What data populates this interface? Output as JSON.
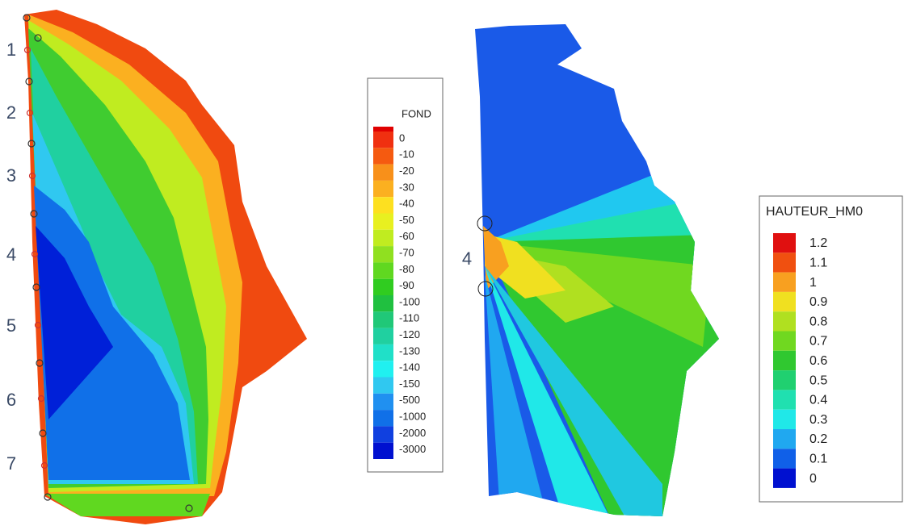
{
  "left_map": {
    "labels": [
      "1",
      "2",
      "3",
      "4",
      "5",
      "6",
      "7"
    ]
  },
  "fond_legend": {
    "title": "FOND",
    "items": [
      {
        "label": "0",
        "color": "#f03010"
      },
      {
        "label": "-10",
        "color": "#f55a10"
      },
      {
        "label": "-20",
        "color": "#f8901a"
      },
      {
        "label": "-30",
        "color": "#fbb020"
      },
      {
        "label": "-40",
        "color": "#fde020"
      },
      {
        "label": "-50",
        "color": "#e8f020"
      },
      {
        "label": "-60",
        "color": "#c0ec20"
      },
      {
        "label": "-70",
        "color": "#90e020"
      },
      {
        "label": "-80",
        "color": "#60d820"
      },
      {
        "label": "-90",
        "color": "#30cc20"
      },
      {
        "label": "-100",
        "color": "#20c040"
      },
      {
        "label": "-110",
        "color": "#20c878"
      },
      {
        "label": "-120",
        "color": "#20d0a0"
      },
      {
        "label": "-130",
        "color": "#20e0c8"
      },
      {
        "label": "-140",
        "color": "#20f0f0"
      },
      {
        "label": "-150",
        "color": "#30c8f0"
      },
      {
        "label": "-500",
        "color": "#2090f0"
      },
      {
        "label": "-1000",
        "color": "#1070e8"
      },
      {
        "label": "-2000",
        "color": "#1040e0"
      },
      {
        "label": "-3000",
        "color": "#0010d0"
      }
    ]
  },
  "right_map": {
    "label": "4"
  },
  "hm0_legend": {
    "title": "HAUTEUR_HM0",
    "items": [
      {
        "label": "1.2",
        "color": "#e01010"
      },
      {
        "label": "1.1",
        "color": "#f05010"
      },
      {
        "label": "1",
        "color": "#f8a020"
      },
      {
        "label": "0.9",
        "color": "#f0e020"
      },
      {
        "label": "0.8",
        "color": "#b0e020"
      },
      {
        "label": "0.7",
        "color": "#70d820"
      },
      {
        "label": "0.6",
        "color": "#30c830"
      },
      {
        "label": "0.5",
        "color": "#20d070"
      },
      {
        "label": "0.4",
        "color": "#20e0b0"
      },
      {
        "label": "0.3",
        "color": "#20e8e8"
      },
      {
        "label": "0.2",
        "color": "#20a8f0"
      },
      {
        "label": "0.1",
        "color": "#1060e8"
      },
      {
        "label": "0",
        "color": "#0010d0"
      }
    ]
  }
}
